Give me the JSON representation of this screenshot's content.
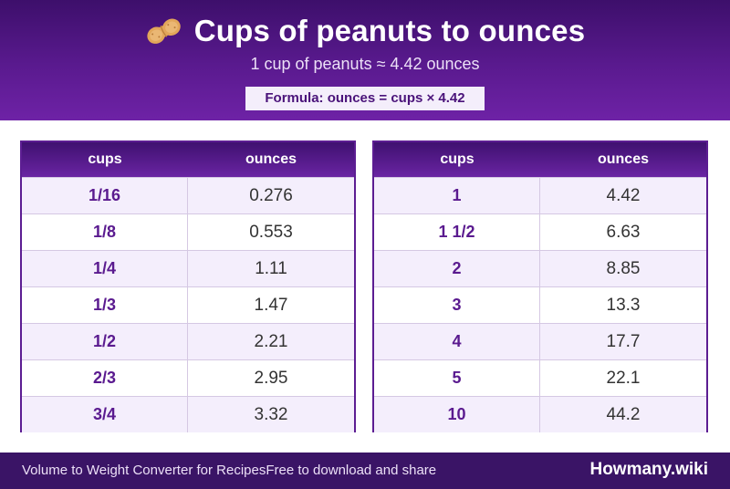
{
  "header": {
    "title": "Cups of peanuts to ounces",
    "icon": "peanut-icon",
    "subtitle": "1 cup of peanuts ≈ 4.42 ounces",
    "formula": "Formula: ounces = cups × 4.42"
  },
  "columns": {
    "cups": "cups",
    "ounces": "ounces"
  },
  "tables": [
    {
      "rows": [
        {
          "cups": "1/16",
          "ounces": "0.276"
        },
        {
          "cups": "1/8",
          "ounces": "0.553"
        },
        {
          "cups": "1/4",
          "ounces": "1.11"
        },
        {
          "cups": "1/3",
          "ounces": "1.47"
        },
        {
          "cups": "1/2",
          "ounces": "2.21"
        },
        {
          "cups": "2/3",
          "ounces": "2.95"
        },
        {
          "cups": "3/4",
          "ounces": "3.32"
        }
      ]
    },
    {
      "rows": [
        {
          "cups": "1",
          "ounces": "4.42"
        },
        {
          "cups": "1 1/2",
          "ounces": "6.63"
        },
        {
          "cups": "2",
          "ounces": "8.85"
        },
        {
          "cups": "3",
          "ounces": "13.3"
        },
        {
          "cups": "4",
          "ounces": "17.7"
        },
        {
          "cups": "5",
          "ounces": "22.1"
        },
        {
          "cups": "10",
          "ounces": "44.2"
        }
      ]
    }
  ],
  "footer": {
    "left": "Volume to Weight Converter for Recipes",
    "middle": "Free to download and share",
    "brand": "Howmany.wiki"
  },
  "colors": {
    "primary": "#5a1a8f",
    "header_dark": "#3d0f6b",
    "footer": "#3a1466",
    "row_alt": "#f4eefc"
  }
}
